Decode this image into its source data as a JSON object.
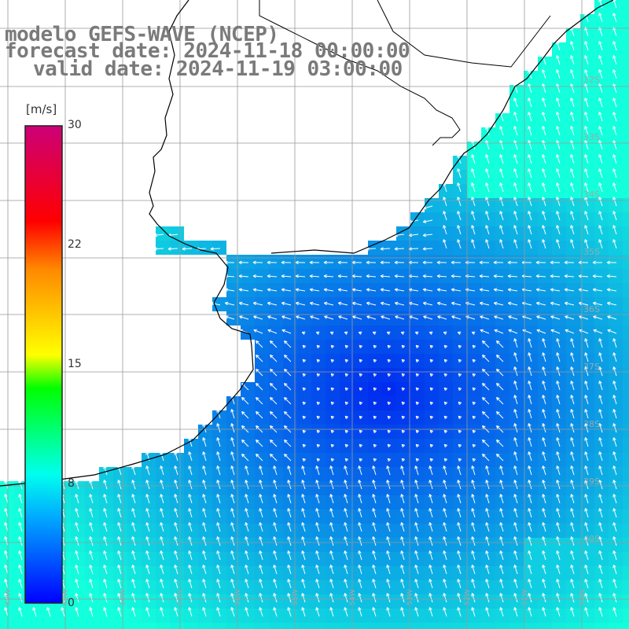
{
  "header": {
    "line1": "modelo GEFS-WAVE (NCEP)",
    "line2": "forecast date: 2024-11-18 00:00:00",
    "line3": "valid date: 2024-11-19 03:00:00"
  },
  "colorbar": {
    "unit": "[m/s]",
    "ticks": [
      "30",
      "22",
      "15",
      "8",
      "0"
    ],
    "tick_values": [
      30,
      22,
      15,
      8,
      0
    ],
    "colors": [
      "#0000ff",
      "#00aaff",
      "#00ffee",
      "#00ff00",
      "#ffff00",
      "#ff8800",
      "#ff0000",
      "#cc0077"
    ]
  },
  "map": {
    "parameter": "wind speed",
    "land_color": "#ffffff",
    "coast_color": "#000000",
    "grid_color": "#999999",
    "lat_labels": [
      "32S",
      "33S",
      "34S",
      "35S",
      "36S",
      "37S",
      "38S",
      "39S",
      "40S"
    ],
    "lon_labels": [
      "60W",
      "59W",
      "58W",
      "57W",
      "56W",
      "55W",
      "54W",
      "53W",
      "52W",
      "51W",
      "50W"
    ]
  }
}
